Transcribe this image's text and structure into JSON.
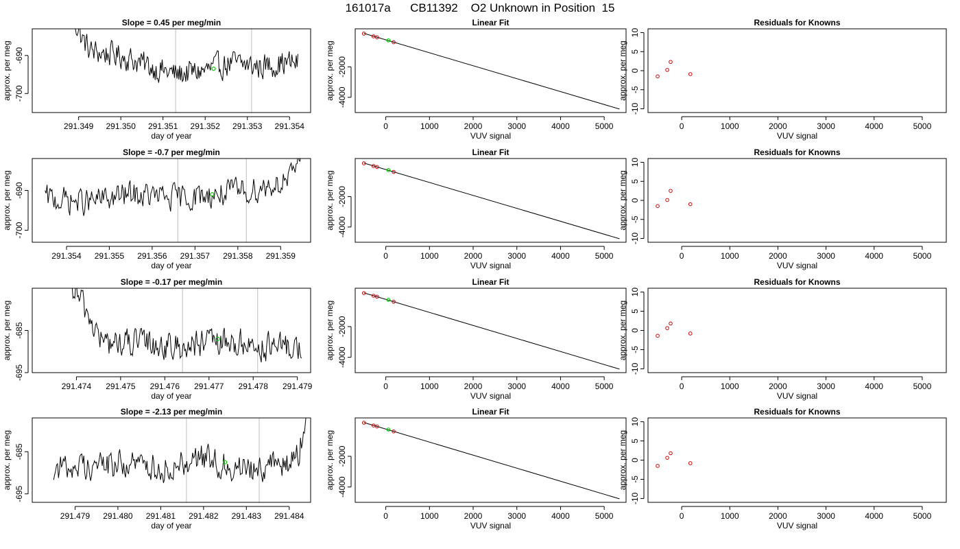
{
  "page_title": "161017a      CB11392    O2 Unknown in Position  15",
  "colors": {
    "trace": "#000000",
    "marker_vline": "#c8c8c8",
    "unknown_point": "#00cc00",
    "known_point": "#cc0000"
  },
  "chart_data": [
    {
      "type": "line",
      "title": "Slope =  0.45  per meg/min",
      "xlabel": "day of year",
      "ylabel": "approx. per meg",
      "xlim": [
        291.3479,
        291.3545
      ],
      "ylim": [
        -705,
        -683
      ],
      "xticks": [
        "291.349",
        "291.350",
        "291.351",
        "291.352",
        "291.353",
        "291.354"
      ],
      "xtick_values": [
        291.349,
        291.35,
        291.351,
        291.352,
        291.353,
        291.354
      ],
      "yticks": [
        "-690",
        "-700"
      ],
      "ytick_values": [
        -690,
        -700
      ],
      "x_range": [
        291.3488,
        291.3542
      ],
      "vlines": [
        291.3513,
        291.3531
      ],
      "highlight": {
        "x": 291.3522,
        "y": -693.5
      },
      "trend": [
        [
          291.3488,
          -678
        ],
        [
          291.3491,
          -686
        ],
        [
          291.3493,
          -689
        ],
        [
          291.35,
          -690
        ],
        [
          291.3507,
          -693
        ],
        [
          291.3513,
          -695
        ],
        [
          291.352,
          -694
        ],
        [
          291.3526,
          -692
        ],
        [
          291.3533,
          -693
        ],
        [
          291.3538,
          -692
        ],
        [
          291.3542,
          -692
        ]
      ]
    },
    {
      "type": "scatter",
      "title": "Linear Fit",
      "xlabel": "VUV signal",
      "ylabel": "approx. per meg",
      "xlim": [
        -700,
        5500
      ],
      "ylim": [
        -5000,
        500
      ],
      "xticks": [
        "0",
        "1000",
        "2000",
        "3000",
        "4000",
        "5000"
      ],
      "xtick_values": [
        0,
        1000,
        2000,
        3000,
        4000,
        5000
      ],
      "yticks": [
        "-2000",
        "-4000"
      ],
      "ytick_values": [
        -2000,
        -4000
      ],
      "fit_line": [
        [
          -500,
          200
        ],
        [
          5350,
          -4770
        ]
      ],
      "known_points": [
        [
          -500,
          185
        ],
        [
          -280,
          5
        ],
        [
          -200,
          -55
        ],
        [
          180,
          -380
        ]
      ],
      "unknown_point": [
        60,
        -260
      ]
    },
    {
      "type": "scatter",
      "title": "Residuals for Knowns",
      "xlabel": "VUV signal",
      "ylabel": "approx. per meg",
      "xlim": [
        -700,
        5500
      ],
      "ylim": [
        -11,
        11
      ],
      "xticks": [
        "0",
        "1000",
        "2000",
        "3000",
        "4000",
        "5000"
      ],
      "xtick_values": [
        0,
        1000,
        2000,
        3000,
        4000,
        5000
      ],
      "yticks": [
        "-10",
        "-5",
        "0",
        "5",
        "10"
      ],
      "ytick_values": [
        -10,
        -5,
        0,
        5,
        10
      ],
      "points": [
        [
          -500,
          -1.5
        ],
        [
          -300,
          0.2
        ],
        [
          -230,
          2.3
        ],
        [
          180,
          -0.9
        ]
      ]
    },
    {
      "type": "line",
      "title": "Slope =  -0.7  per meg/min",
      "xlabel": "day of year",
      "ylabel": "approx. per meg",
      "xlim": [
        291.3532,
        291.3597
      ],
      "ylim": [
        -703,
        -682
      ],
      "xticks": [
        "291.354",
        "291.355",
        "291.356",
        "291.357",
        "291.358",
        "291.359"
      ],
      "xtick_values": [
        291.354,
        291.355,
        291.356,
        291.357,
        291.358,
        291.359
      ],
      "yticks": [
        "-690",
        "-700"
      ],
      "ytick_values": [
        -690,
        -700
      ],
      "x_range": [
        291.3535,
        291.3595
      ],
      "vlines": [
        291.3566,
        291.3582
      ],
      "highlight": {
        "x": 291.3574,
        "y": -691
      },
      "trend": [
        [
          291.3535,
          -692
        ],
        [
          291.3545,
          -693
        ],
        [
          291.3555,
          -691
        ],
        [
          291.3565,
          -692
        ],
        [
          291.3575,
          -691
        ],
        [
          291.3583,
          -690
        ],
        [
          291.359,
          -688
        ],
        [
          291.3593,
          -687
        ],
        [
          291.3595,
          -677
        ]
      ]
    },
    {
      "type": "scatter",
      "title": "Linear Fit",
      "xlabel": "VUV signal",
      "ylabel": "approx. per meg",
      "xlim": [
        -700,
        5500
      ],
      "ylim": [
        -5000,
        500
      ],
      "xticks": [
        "0",
        "1000",
        "2000",
        "3000",
        "4000",
        "5000"
      ],
      "xtick_values": [
        0,
        1000,
        2000,
        3000,
        4000,
        5000
      ],
      "yticks": [
        "-2000",
        "-4000"
      ],
      "ytick_values": [
        -2000,
        -4000
      ],
      "fit_line": [
        [
          -500,
          200
        ],
        [
          5350,
          -4770
        ]
      ],
      "known_points": [
        [
          -500,
          185
        ],
        [
          -280,
          5
        ],
        [
          -200,
          -55
        ],
        [
          180,
          -380
        ]
      ],
      "unknown_point": [
        60,
        -260
      ]
    },
    {
      "type": "scatter",
      "title": "Residuals for Knowns",
      "xlabel": "VUV signal",
      "ylabel": "approx. per meg",
      "xlim": [
        -700,
        5500
      ],
      "ylim": [
        -11,
        11
      ],
      "xticks": [
        "0",
        "1000",
        "2000",
        "3000",
        "4000",
        "5000"
      ],
      "xtick_values": [
        0,
        1000,
        2000,
        3000,
        4000,
        5000
      ],
      "yticks": [
        "-10",
        "-5",
        "0",
        "5",
        "10"
      ],
      "ytick_values": [
        -10,
        -5,
        0,
        5,
        10
      ],
      "points": [
        [
          -500,
          -1.5
        ],
        [
          -300,
          0.1
        ],
        [
          -230,
          2.5
        ],
        [
          180,
          -1.0
        ]
      ]
    },
    {
      "type": "line",
      "title": "Slope =  -0.17  per meg/min",
      "xlabel": "day of year",
      "ylabel": "approx. per meg",
      "xlim": [
        291.473,
        291.4793
      ],
      "ylim": [
        -695,
        -675
      ],
      "xticks": [
        "291.474",
        "291.475",
        "291.476",
        "291.477",
        "291.478",
        "291.479"
      ],
      "xtick_values": [
        291.474,
        291.475,
        291.476,
        291.477,
        291.478,
        291.479
      ],
      "yticks": [
        "-685",
        "-695"
      ],
      "ytick_values": [
        -685,
        -695
      ],
      "x_range": [
        291.4738,
        291.4791
      ],
      "vlines": [
        291.4764,
        291.4781
      ],
      "highlight": {
        "x": 291.4772,
        "y": -687
      },
      "trend": [
        [
          291.4738,
          -673
        ],
        [
          291.4742,
          -680
        ],
        [
          291.4746,
          -688
        ],
        [
          291.475,
          -688
        ],
        [
          291.4756,
          -688
        ],
        [
          291.4762,
          -689
        ],
        [
          291.477,
          -688
        ],
        [
          291.4777,
          -688
        ],
        [
          291.4783,
          -689
        ],
        [
          291.4791,
          -689
        ]
      ]
    },
    {
      "type": "scatter",
      "title": "Linear Fit",
      "xlabel": "VUV signal",
      "ylabel": "approx. per meg",
      "xlim": [
        -700,
        5500
      ],
      "ylim": [
        -5000,
        500
      ],
      "xticks": [
        "0",
        "1000",
        "2000",
        "3000",
        "4000",
        "5000"
      ],
      "xtick_values": [
        0,
        1000,
        2000,
        3000,
        4000,
        5000
      ],
      "yticks": [
        "-2000",
        "-4000"
      ],
      "ytick_values": [
        -2000,
        -4000
      ],
      "fit_line": [
        [
          -500,
          200
        ],
        [
          5350,
          -4770
        ]
      ],
      "known_points": [
        [
          -500,
          185
        ],
        [
          -280,
          5
        ],
        [
          -200,
          -55
        ],
        [
          180,
          -380
        ]
      ],
      "unknown_point": [
        60,
        -260
      ]
    },
    {
      "type": "scatter",
      "title": "Residuals for Knowns",
      "xlabel": "VUV signal",
      "ylabel": "approx. per meg",
      "xlim": [
        -700,
        5500
      ],
      "ylim": [
        -11,
        11
      ],
      "xticks": [
        "0",
        "1000",
        "2000",
        "3000",
        "4000",
        "5000"
      ],
      "xtick_values": [
        0,
        1000,
        2000,
        3000,
        4000,
        5000
      ],
      "yticks": [
        "-10",
        "-5",
        "0",
        "5",
        "10"
      ],
      "ytick_values": [
        -10,
        -5,
        0,
        5,
        10
      ],
      "points": [
        [
          -500,
          -1.4
        ],
        [
          -300,
          0.6
        ],
        [
          -230,
          1.8
        ],
        [
          180,
          -0.8
        ]
      ]
    },
    {
      "type": "line",
      "title": "Slope =  -2.13  per meg/min",
      "xlabel": "day of year",
      "ylabel": "approx. per meg",
      "xlim": [
        291.478,
        291.4845
      ],
      "ylim": [
        -697,
        -677
      ],
      "xticks": [
        "291.479",
        "291.480",
        "291.481",
        "291.482",
        "291.483",
        "291.484"
      ],
      "xtick_values": [
        291.479,
        291.48,
        291.481,
        291.482,
        291.483,
        291.484
      ],
      "yticks": [
        "-685",
        "-695"
      ],
      "ytick_values": [
        -685,
        -695
      ],
      "x_range": [
        291.4785,
        291.4844
      ],
      "vlines": [
        291.4816,
        291.4833
      ],
      "highlight": {
        "x": 291.4825,
        "y": -687.5
      },
      "trend": [
        [
          291.4785,
          -689
        ],
        [
          291.4795,
          -688
        ],
        [
          291.4805,
          -688
        ],
        [
          291.4812,
          -689
        ],
        [
          291.4818,
          -686
        ],
        [
          291.4825,
          -688
        ],
        [
          291.483,
          -689
        ],
        [
          291.4836,
          -688
        ],
        [
          291.484,
          -688
        ],
        [
          291.4842,
          -686
        ],
        [
          291.4844,
          -678
        ]
      ]
    },
    {
      "type": "scatter",
      "title": "Linear Fit",
      "xlabel": "VUV signal",
      "ylabel": "approx. per meg",
      "xlim": [
        -700,
        5500
      ],
      "ylim": [
        -5000,
        500
      ],
      "xticks": [
        "0",
        "1000",
        "2000",
        "3000",
        "4000",
        "5000"
      ],
      "xtick_values": [
        0,
        1000,
        2000,
        3000,
        4000,
        5000
      ],
      "yticks": [
        "-2000",
        "-4000"
      ],
      "ytick_values": [
        -2000,
        -4000
      ],
      "fit_line": [
        [
          -500,
          200
        ],
        [
          5350,
          -4770
        ]
      ],
      "known_points": [
        [
          -500,
          185
        ],
        [
          -280,
          5
        ],
        [
          -200,
          -55
        ],
        [
          180,
          -380
        ]
      ],
      "unknown_point": [
        60,
        -260
      ]
    },
    {
      "type": "scatter",
      "title": "Residuals for Knowns",
      "xlabel": "VUV signal",
      "ylabel": "approx. per meg",
      "xlim": [
        -700,
        5500
      ],
      "ylim": [
        -11,
        11
      ],
      "xticks": [
        "0",
        "1000",
        "2000",
        "3000",
        "4000",
        "5000"
      ],
      "xtick_values": [
        0,
        1000,
        2000,
        3000,
        4000,
        5000
      ],
      "yticks": [
        "-10",
        "-5",
        "0",
        "5",
        "10"
      ],
      "ytick_values": [
        -10,
        -5,
        0,
        5,
        10
      ],
      "points": [
        [
          -500,
          -1.5
        ],
        [
          -300,
          0.6
        ],
        [
          -230,
          1.8
        ],
        [
          180,
          -0.8
        ]
      ]
    }
  ]
}
